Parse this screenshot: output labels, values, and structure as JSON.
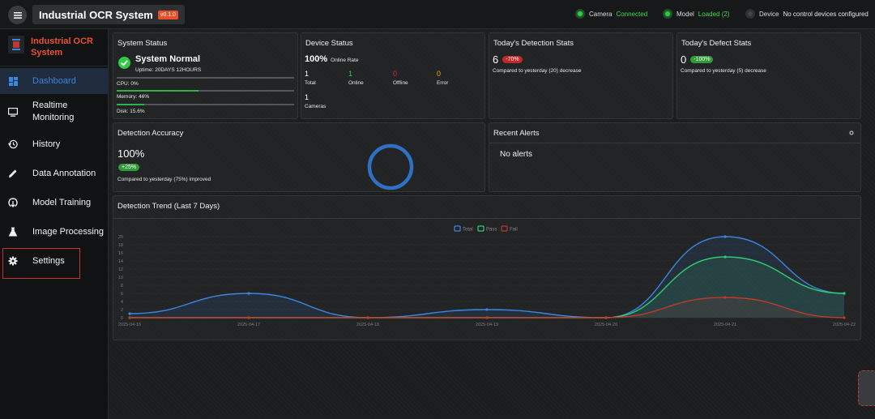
{
  "header": {
    "title": "Industrial OCR System",
    "version": "v0.1.0",
    "status": {
      "camera": {
        "label": "Camera",
        "value": "Connected"
      },
      "model": {
        "label": "Model",
        "value": "Loaded (2)"
      },
      "device": {
        "label": "Device",
        "value": "No control devices configured"
      }
    }
  },
  "sidebar": {
    "brand": "Industrial OCR System",
    "items": [
      {
        "label": "Dashboard",
        "icon": "dashboard-icon"
      },
      {
        "label": "Realtime Monitoring",
        "icon": "monitor-icon"
      },
      {
        "label": "History",
        "icon": "history-icon"
      },
      {
        "label": "Data Annotation",
        "icon": "pencil-icon"
      },
      {
        "label": "Model Training",
        "icon": "training-icon"
      },
      {
        "label": "Image Processing",
        "icon": "flask-icon"
      },
      {
        "label": "Settings",
        "icon": "gear-icon"
      }
    ]
  },
  "system_status": {
    "title": "System Status",
    "state": "System Normal",
    "uptime": "Uptime: 20DAYS 12HOURS",
    "cpu": "CPU: 0%",
    "memory": "Memory: 46%",
    "disk": "Disk: 15.6%",
    "cpu_pct": 0,
    "memory_pct": 46,
    "disk_pct": 15.6
  },
  "device_status": {
    "title": "Device Status",
    "online_rate": "100%",
    "online_rate_label": "Online Rate",
    "total": "1",
    "total_label": "Total",
    "online": "1",
    "online_label": "Online",
    "offline": "0",
    "offline_label": "Offline",
    "error": "0",
    "error_label": "Error",
    "cameras": "1",
    "cameras_label": "Cameras"
  },
  "detection_stats": {
    "title": "Today's Detection Stats",
    "value": "6",
    "change": "-70%",
    "note": "Compared to yesterday (20) decrease"
  },
  "defect_stats": {
    "title": "Today's Defect Stats",
    "value": "0",
    "change": "-100%",
    "note": "Compared to yesterday (5) decrease"
  },
  "accuracy": {
    "title": "Detection Accuracy",
    "value": "100%",
    "change": "+25%",
    "note": "Compared to yesterday (75%) improved",
    "ring_pct": 100
  },
  "alerts": {
    "title": "Recent Alerts",
    "empty": "No alerts"
  },
  "trend": {
    "title": "Detection Trend (Last 7 Days)"
  },
  "colors": {
    "accent": "#e8502a",
    "total": "#3a86e0",
    "pass": "#2ecc71",
    "fail": "#c0392b"
  },
  "chart_data": {
    "type": "line",
    "categories": [
      "2025-04-16",
      "2025-04-17",
      "2025-04-18",
      "2025-04-19",
      "2025-04-20",
      "2025-04-21",
      "2025-04-22"
    ],
    "series": [
      {
        "name": "Total",
        "values": [
          1,
          6,
          0,
          2,
          0,
          20,
          6
        ]
      },
      {
        "name": "Pass",
        "values": [
          0,
          0,
          0,
          0,
          0,
          15,
          6
        ]
      },
      {
        "name": "Fail",
        "values": [
          0,
          0,
          0,
          0,
          0,
          5,
          0
        ]
      }
    ],
    "yticks": [
      "0",
      "2",
      "4",
      "6",
      "8",
      "10",
      "12",
      "14",
      "16",
      "18",
      "20"
    ],
    "ylim": [
      0,
      20
    ],
    "legend": "top-center"
  }
}
